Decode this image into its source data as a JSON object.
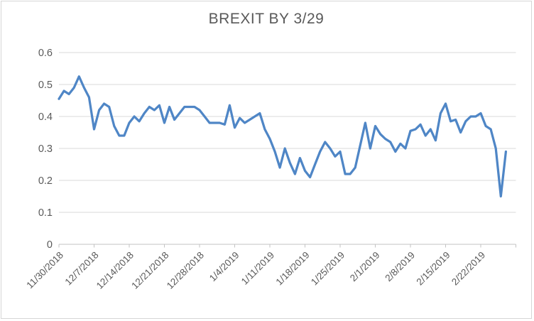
{
  "window": {
    "background": "#FFFFFF",
    "border_color": "#D6D6D6"
  },
  "chart_data": {
    "type": "line",
    "title": "BREXIT BY 3/29",
    "xlabel": "",
    "ylabel": "",
    "ylim": [
      0,
      0.6
    ],
    "grid": "horizontal",
    "legend": "none",
    "style": {
      "line_color": "#4F86C6",
      "grid_color": "#D9D9D9",
      "axis_color": "#C3C3C3",
      "text_color": "#595959"
    },
    "y_tick_labels": [
      "0",
      "0.1",
      "0.2",
      "0.3",
      "0.4",
      "0.5",
      "0.6"
    ],
    "x_tick_labels": [
      "11/30/2018",
      "12/7/2018",
      "12/14/2018",
      "12/21/2018",
      "12/28/2018",
      "1/4/2019",
      "1/11/2019",
      "1/18/2019",
      "1/25/2019",
      "2/1/2019",
      "2/8/2019",
      "2/15/2019",
      "2/22/2019"
    ],
    "x": [
      "11/30/2018",
      "12/1/2018",
      "12/2/2018",
      "12/3/2018",
      "12/4/2018",
      "12/5/2018",
      "12/6/2018",
      "12/7/2018",
      "12/8/2018",
      "12/9/2018",
      "12/10/2018",
      "12/11/2018",
      "12/12/2018",
      "12/13/2018",
      "12/14/2018",
      "12/15/2018",
      "12/16/2018",
      "12/17/2018",
      "12/18/2018",
      "12/19/2018",
      "12/20/2018",
      "12/21/2018",
      "12/22/2018",
      "12/23/2018",
      "12/24/2018",
      "12/25/2018",
      "12/26/2018",
      "12/27/2018",
      "12/28/2018",
      "12/29/2018",
      "12/30/2018",
      "12/31/2018",
      "1/1/2019",
      "1/2/2019",
      "1/3/2019",
      "1/4/2019",
      "1/5/2019",
      "1/6/2019",
      "1/7/2019",
      "1/8/2019",
      "1/9/2019",
      "1/10/2019",
      "1/11/2019",
      "1/12/2019",
      "1/13/2019",
      "1/14/2019",
      "1/15/2019",
      "1/16/2019",
      "1/17/2019",
      "1/18/2019",
      "1/19/2019",
      "1/20/2019",
      "1/21/2019",
      "1/22/2019",
      "1/23/2019",
      "1/24/2019",
      "1/25/2019",
      "1/26/2019",
      "1/27/2019",
      "1/28/2019",
      "1/29/2019",
      "1/30/2019",
      "1/31/2019",
      "2/1/2019",
      "2/2/2019",
      "2/3/2019",
      "2/4/2019",
      "2/5/2019",
      "2/6/2019",
      "2/7/2019",
      "2/8/2019",
      "2/9/2019",
      "2/10/2019",
      "2/11/2019",
      "2/12/2019",
      "2/13/2019",
      "2/14/2019",
      "2/15/2019",
      "2/16/2019",
      "2/17/2019",
      "2/18/2019",
      "2/19/2019",
      "2/20/2019",
      "2/21/2019",
      "2/22/2019",
      "2/23/2019",
      "2/24/2019",
      "2/25/2019",
      "2/26/2019",
      "2/27/2019"
    ],
    "values": [
      0.455,
      0.48,
      0.47,
      0.49,
      0.525,
      0.49,
      0.46,
      0.36,
      0.42,
      0.44,
      0.43,
      0.37,
      0.34,
      0.34,
      0.38,
      0.4,
      0.385,
      0.41,
      0.43,
      0.42,
      0.435,
      0.38,
      0.43,
      0.39,
      0.41,
      0.43,
      0.43,
      0.43,
      0.42,
      0.4,
      0.38,
      0.38,
      0.38,
      0.375,
      0.435,
      0.365,
      0.395,
      0.38,
      0.39,
      0.4,
      0.41,
      0.36,
      0.33,
      0.29,
      0.24,
      0.3,
      0.255,
      0.22,
      0.27,
      0.23,
      0.21,
      0.25,
      0.29,
      0.32,
      0.3,
      0.275,
      0.29,
      0.22,
      0.22,
      0.24,
      0.31,
      0.38,
      0.3,
      0.37,
      0.345,
      0.33,
      0.32,
      0.29,
      0.315,
      0.3,
      0.355,
      0.36,
      0.375,
      0.34,
      0.36,
      0.325,
      0.41,
      0.44,
      0.385,
      0.39,
      0.35,
      0.385,
      0.4,
      0.4,
      0.41,
      0.37,
      0.36,
      0.3,
      0.15,
      0.29
    ]
  }
}
